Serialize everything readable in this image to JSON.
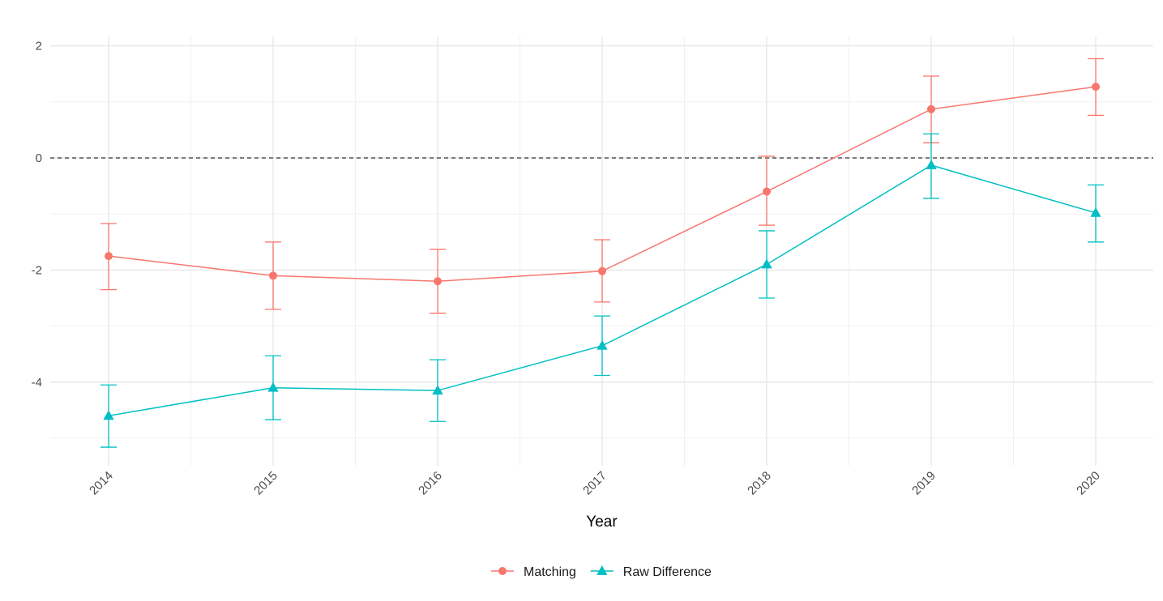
{
  "chart_data": {
    "type": "line",
    "title": "",
    "xlabel": "Year",
    "ylabel": "",
    "x": [
      "2014",
      "2015",
      "2016",
      "2017",
      "2018",
      "2019",
      "2020"
    ],
    "ylim": [
      -5.3,
      2.2
    ],
    "yticks": [
      -4,
      -2,
      0,
      2
    ],
    "ytick_labels": [
      "-4",
      "-2",
      "0",
      "2"
    ],
    "reference_line": 0,
    "grid": true,
    "legend_position": "bottom",
    "series": [
      {
        "name": "Matching",
        "color": "#F8766D",
        "marker": "circle",
        "values": [
          -1.75,
          -2.1,
          -2.2,
          -2.02,
          -0.6,
          0.87,
          1.27
        ],
        "lower": [
          -2.35,
          -2.7,
          -2.77,
          -2.57,
          -1.2,
          0.27,
          0.76
        ],
        "upper": [
          -1.17,
          -1.5,
          -1.63,
          -1.46,
          0.03,
          1.46,
          1.77
        ]
      },
      {
        "name": "Raw Difference",
        "color": "#00BFC4",
        "marker": "triangle",
        "values": [
          -4.6,
          -4.1,
          -4.15,
          -3.35,
          -1.9,
          -0.13,
          -0.98
        ],
        "lower": [
          -5.16,
          -4.67,
          -4.7,
          -3.88,
          -2.5,
          -0.72,
          -1.5
        ],
        "upper": [
          -4.05,
          -3.53,
          -3.6,
          -2.82,
          -1.3,
          0.43,
          -0.48
        ]
      }
    ]
  }
}
